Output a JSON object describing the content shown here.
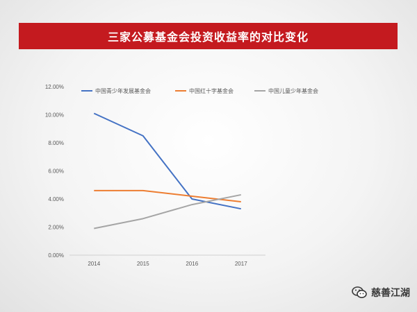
{
  "title": "三家公募基金会投资收益率的对比变化",
  "watermark": {
    "text": "慈善江湖",
    "icon": "wechat-icon"
  },
  "chart_data": {
    "type": "line",
    "title": "三家公募基金会投资收益率的对比变化",
    "categories": [
      "2014",
      "2015",
      "2016",
      "2017"
    ],
    "ylim": [
      0,
      0.12
    ],
    "yticks": [
      "0.00%",
      "2.00%",
      "4.00%",
      "6.00%",
      "8.00%",
      "10.00%",
      "12.00%"
    ],
    "grid": false,
    "legend_position": "top",
    "series": [
      {
        "name": "中国青少年发展基金会",
        "color": "#4472c4",
        "values": [
          0.101,
          0.085,
          0.04,
          0.033
        ]
      },
      {
        "name": "中国红十字基金会",
        "color": "#ed7d31",
        "values": [
          0.046,
          0.046,
          0.042,
          0.038
        ]
      },
      {
        "name": "中国儿童少年基金会",
        "color": "#a5a5a5",
        "values": [
          0.019,
          0.026,
          0.036,
          0.043
        ]
      }
    ]
  }
}
